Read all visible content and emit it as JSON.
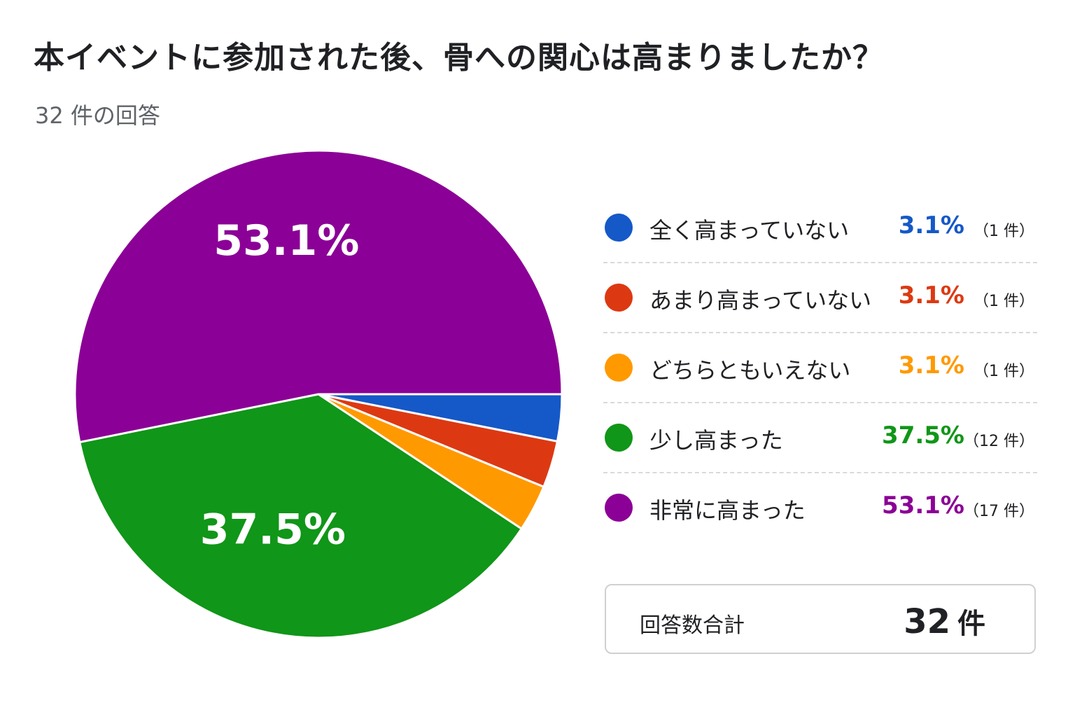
{
  "title": "本イベントに参加された後、骨への関心は高まりましたか？",
  "subtitle": "32 件の回答",
  "chart_data": {
    "type": "pie",
    "title": "本イベントに参加された後、骨への関心は高まりましたか？",
    "subtitle": "32 件の回答",
    "legend_position": "right",
    "slices": [
      {
        "label": "全く高まっていない",
        "percent": 3.1,
        "percent_text": "3.1%",
        "count": 1,
        "count_text": "（1 件）",
        "color": "#1558c8"
      },
      {
        "label": "あまり高まっていない",
        "percent": 3.1,
        "percent_text": "3.1%",
        "count": 1,
        "count_text": "（1 件）",
        "color": "#dc3912"
      },
      {
        "label": "どちらともいえない",
        "percent": 3.1,
        "percent_text": "3.1%",
        "count": 1,
        "count_text": "（1 件）",
        "color": "#ff9900"
      },
      {
        "label": "少し高まった",
        "percent": 37.5,
        "percent_text": "37.5%",
        "count": 12,
        "count_text": "（12 件）",
        "color": "#109618"
      },
      {
        "label": "非常に高まった",
        "percent": 53.1,
        "percent_text": "53.1%",
        "count": 17,
        "count_text": "（17 件）",
        "color": "#8b0096"
      }
    ],
    "slice_labels_shown": [
      "53.1%",
      "37.5%"
    ]
  },
  "total": {
    "label": "回答数合計",
    "value": "32",
    "unit": "件"
  }
}
